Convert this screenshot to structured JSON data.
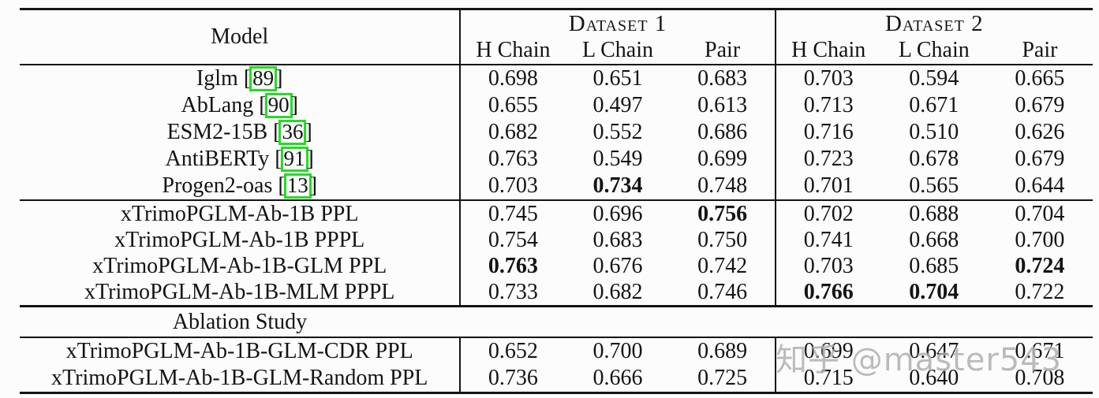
{
  "header": {
    "model": "Model",
    "dataset1": "Dataset 1",
    "dataset2": "Dataset 2",
    "sub1": [
      "H Chain",
      "L Chain",
      "Pair"
    ],
    "sub2": [
      "H Chain",
      "L Chain",
      "Pair"
    ]
  },
  "sections": [
    {
      "rows": [
        {
          "name": "Iglm",
          "cite": "89",
          "v": [
            "0.698",
            "0.651",
            "0.683",
            "0.703",
            "0.594",
            "0.665"
          ]
        },
        {
          "name": "AbLang",
          "cite": "90",
          "v": [
            "0.655",
            "0.497",
            "0.613",
            "0.713",
            "0.671",
            "0.679"
          ]
        },
        {
          "name": "ESM2-15B",
          "cite": "36",
          "v": [
            "0.682",
            "0.552",
            "0.686",
            "0.716",
            "0.510",
            "0.626"
          ]
        },
        {
          "name": "AntiBERTy",
          "cite": "91",
          "v": [
            "0.763",
            "0.549",
            "0.699",
            "0.723",
            "0.678",
            "0.679"
          ]
        },
        {
          "name": "Progen2-oas",
          "cite": "13",
          "v": [
            "0.703",
            "0.734",
            "0.748",
            "0.701",
            "0.565",
            "0.644"
          ],
          "b": [
            0,
            1,
            0,
            0,
            0,
            0
          ]
        }
      ]
    },
    {
      "rows": [
        {
          "name": "xTrimoPGLM-Ab-1B PPL",
          "v": [
            "0.745",
            "0.696",
            "0.756",
            "0.702",
            "0.688",
            "0.704"
          ],
          "b": [
            0,
            0,
            1,
            0,
            0,
            0
          ]
        },
        {
          "name": "xTrimoPGLM-Ab-1B PPPL",
          "v": [
            "0.754",
            "0.683",
            "0.750",
            "0.741",
            "0.668",
            "0.700"
          ]
        },
        {
          "name": "xTrimoPGLM-Ab-1B-GLM PPL",
          "v": [
            "0.763",
            "0.676",
            "0.742",
            "0.703",
            "0.685",
            "0.724"
          ],
          "b": [
            1,
            0,
            0,
            0,
            0,
            1
          ]
        },
        {
          "name": "xTrimoPGLM-Ab-1B-MLM PPPL",
          "v": [
            "0.733",
            "0.682",
            "0.746",
            "0.766",
            "0.704",
            "0.722"
          ],
          "b": [
            0,
            0,
            0,
            1,
            1,
            0
          ]
        }
      ]
    },
    {
      "label": "Ablation Study",
      "rows": [
        {
          "name": "xTrimoPGLM-Ab-1B-GLM-CDR PPL",
          "v": [
            "0.652",
            "0.700",
            "0.689",
            "0.699",
            "0.647",
            "0.671"
          ]
        },
        {
          "name": "xTrimoPGLM-Ab-1B-GLM-Random PPL",
          "v": [
            "0.736",
            "0.666",
            "0.725",
            "0.715",
            "0.640",
            "0.708"
          ]
        }
      ]
    }
  ],
  "watermark": "知乎 @master543",
  "colors": {
    "cite_box": "#22dd22",
    "text": "#141414",
    "watermark": "#919191",
    "background": "#fcfcfc"
  }
}
